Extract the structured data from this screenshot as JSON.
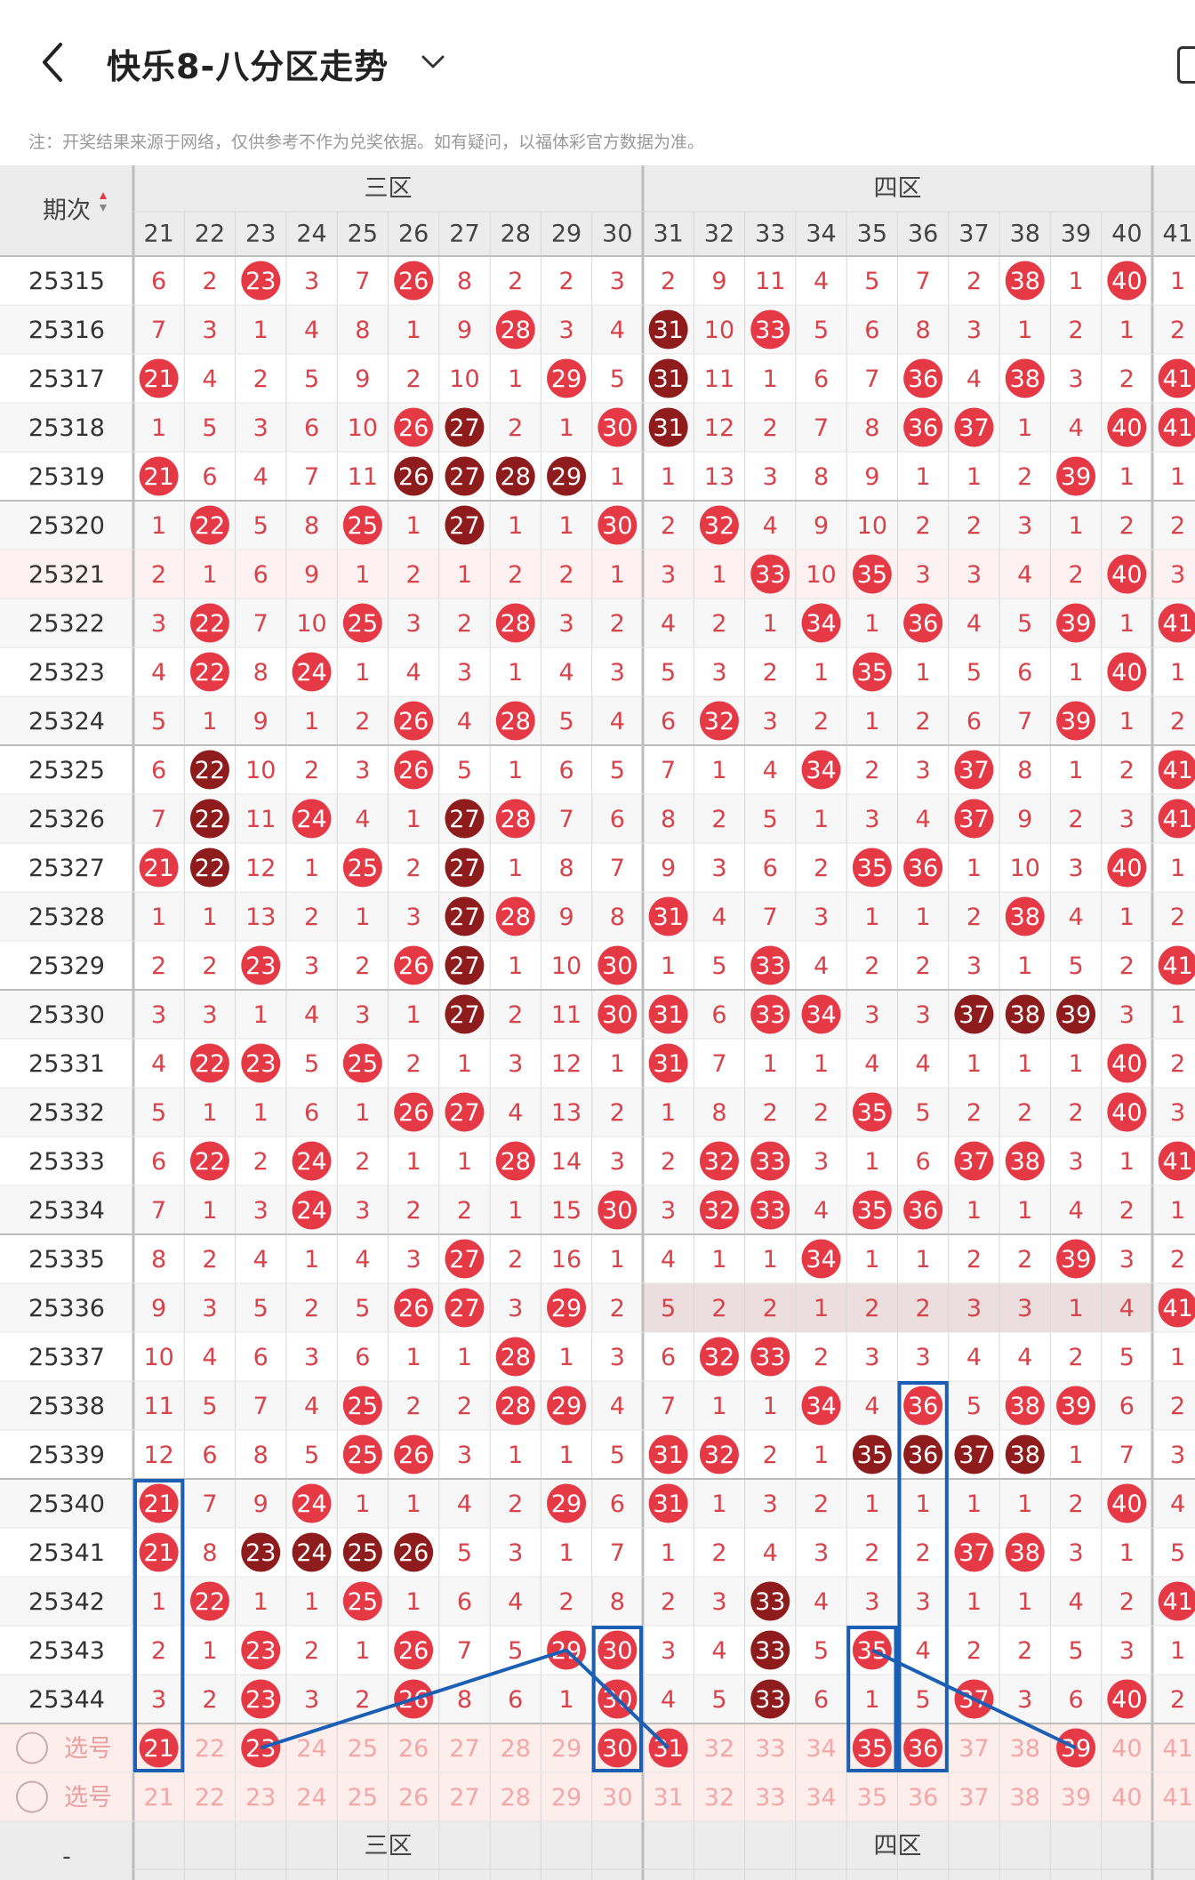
{
  "header": {
    "title": "快乐8-八分区走势",
    "notice": "注：开奖结果来源于网络，仅供参考不作为兑奖依据。如有疑问，以福体彩官方数据为准。"
  },
  "table": {
    "period_label": "期次",
    "zones": [
      "三区",
      "四区"
    ],
    "columns": [
      21,
      22,
      23,
      24,
      25,
      26,
      27,
      28,
      29,
      30,
      31,
      32,
      33,
      34,
      35,
      36,
      37,
      38,
      39,
      40,
      41
    ],
    "rows": [
      {
        "p": "25315",
        "v": [
          6,
          2,
          "23",
          3,
          7,
          "26",
          8,
          2,
          2,
          3,
          2,
          9,
          11,
          4,
          5,
          7,
          2,
          "38",
          1,
          "40",
          1
        ]
      },
      {
        "p": "25316",
        "v": [
          7,
          3,
          1,
          4,
          8,
          1,
          9,
          "28",
          3,
          4,
          "31d",
          10,
          "33",
          5,
          6,
          8,
          3,
          1,
          2,
          1,
          2
        ]
      },
      {
        "p": "25317",
        "v": [
          "21",
          4,
          2,
          5,
          9,
          2,
          10,
          1,
          "29",
          5,
          "31d",
          11,
          1,
          6,
          7,
          "36",
          4,
          "38",
          3,
          2,
          "41"
        ]
      },
      {
        "p": "25318",
        "v": [
          1,
          5,
          3,
          6,
          10,
          "26",
          "27d",
          2,
          1,
          "30",
          "31d",
          12,
          2,
          7,
          8,
          "36",
          "37",
          1,
          4,
          "40",
          "41"
        ]
      },
      {
        "p": "25319",
        "v": [
          "21",
          6,
          4,
          7,
          11,
          "26d",
          "27d",
          "28d",
          "29d",
          1,
          1,
          13,
          3,
          8,
          9,
          1,
          1,
          2,
          "39",
          1,
          1
        ]
      },
      {
        "p": "25320",
        "v": [
          1,
          "22",
          5,
          8,
          "25",
          1,
          "27d",
          1,
          1,
          "30",
          2,
          "32",
          4,
          9,
          10,
          2,
          2,
          3,
          1,
          2,
          2
        ]
      },
      {
        "p": "25321",
        "v": [
          2,
          1,
          6,
          9,
          1,
          2,
          1,
          2,
          2,
          1,
          3,
          1,
          "33",
          10,
          "35",
          3,
          3,
          4,
          2,
          "40",
          3
        ]
      },
      {
        "p": "25322",
        "v": [
          3,
          "22",
          7,
          10,
          "25",
          3,
          2,
          "28",
          3,
          2,
          4,
          2,
          1,
          "34",
          1,
          "36",
          4,
          5,
          "39",
          1,
          "41"
        ]
      },
      {
        "p": "25323",
        "v": [
          4,
          "22",
          8,
          "24",
          1,
          4,
          3,
          1,
          4,
          3,
          5,
          3,
          2,
          1,
          "35",
          1,
          5,
          6,
          1,
          "40",
          1
        ]
      },
      {
        "p": "25324",
        "v": [
          5,
          1,
          9,
          1,
          2,
          "26",
          4,
          "28",
          5,
          4,
          6,
          "32",
          3,
          2,
          1,
          2,
          6,
          7,
          "39",
          1,
          2
        ]
      },
      {
        "p": "25325",
        "v": [
          6,
          "22d",
          10,
          2,
          3,
          "26",
          5,
          1,
          6,
          5,
          7,
          1,
          4,
          "34",
          2,
          3,
          "37",
          8,
          1,
          2,
          "41"
        ]
      },
      {
        "p": "25326",
        "v": [
          7,
          "22d",
          11,
          "24",
          4,
          1,
          "27d",
          "28",
          7,
          6,
          8,
          2,
          5,
          1,
          3,
          4,
          "37",
          9,
          2,
          3,
          "41"
        ]
      },
      {
        "p": "25327",
        "v": [
          "21",
          "22d",
          12,
          1,
          "25",
          2,
          "27d",
          1,
          8,
          7,
          9,
          3,
          6,
          2,
          "35",
          "36",
          1,
          10,
          3,
          "40",
          1
        ]
      },
      {
        "p": "25328",
        "v": [
          1,
          1,
          13,
          2,
          1,
          3,
          "27d",
          "28",
          9,
          8,
          "31",
          4,
          7,
          3,
          1,
          1,
          2,
          "38",
          4,
          1,
          2
        ]
      },
      {
        "p": "25329",
        "v": [
          2,
          2,
          "23",
          3,
          2,
          "26",
          "27d",
          1,
          10,
          "30",
          1,
          5,
          "33",
          4,
          2,
          2,
          3,
          1,
          5,
          2,
          "41"
        ]
      },
      {
        "p": "25330",
        "v": [
          3,
          3,
          1,
          4,
          3,
          1,
          "27d",
          2,
          11,
          "30",
          "31",
          6,
          "33",
          "34",
          3,
          3,
          "37d",
          "38d",
          "39d",
          3,
          1
        ]
      },
      {
        "p": "25331",
        "v": [
          4,
          "22",
          "23",
          5,
          "25",
          2,
          1,
          3,
          12,
          1,
          "31",
          7,
          1,
          1,
          4,
          4,
          1,
          1,
          1,
          "40",
          2
        ]
      },
      {
        "p": "25332",
        "v": [
          5,
          1,
          1,
          6,
          1,
          "26",
          "27",
          4,
          13,
          2,
          1,
          8,
          2,
          2,
          "35",
          5,
          2,
          2,
          2,
          "40",
          3
        ]
      },
      {
        "p": "25333",
        "v": [
          6,
          "22",
          2,
          "24",
          2,
          1,
          1,
          "28",
          14,
          3,
          2,
          "32",
          "33",
          3,
          1,
          6,
          "37",
          "38",
          3,
          1,
          "41"
        ]
      },
      {
        "p": "25334",
        "v": [
          7,
          1,
          3,
          "24",
          3,
          2,
          2,
          1,
          15,
          "30",
          3,
          "32",
          "33",
          4,
          "35",
          "36",
          1,
          1,
          4,
          2,
          1
        ]
      },
      {
        "p": "25335",
        "v": [
          8,
          2,
          4,
          1,
          4,
          3,
          "27",
          2,
          16,
          1,
          4,
          1,
          1,
          "34",
          1,
          1,
          2,
          2,
          "39",
          3,
          2
        ]
      },
      {
        "p": "25336",
        "v": [
          9,
          3,
          5,
          2,
          5,
          "26",
          "27",
          3,
          "29",
          2,
          5,
          2,
          2,
          1,
          2,
          2,
          3,
          3,
          1,
          4,
          "41"
        ]
      },
      {
        "p": "25337",
        "v": [
          10,
          4,
          6,
          3,
          6,
          1,
          1,
          "28",
          1,
          3,
          6,
          "32",
          "33",
          2,
          3,
          3,
          4,
          4,
          2,
          5,
          1
        ]
      },
      {
        "p": "25338",
        "v": [
          11,
          5,
          7,
          4,
          "25",
          2,
          2,
          "28",
          "29",
          4,
          7,
          1,
          1,
          "34",
          4,
          "36",
          5,
          "38",
          "39",
          6,
          2
        ]
      },
      {
        "p": "25339",
        "v": [
          12,
          6,
          8,
          5,
          "25",
          "26",
          3,
          1,
          1,
          5,
          "31",
          "32",
          2,
          1,
          "35d",
          "36d",
          "37d",
          "38d",
          1,
          7,
          3
        ]
      },
      {
        "p": "25340",
        "v": [
          "21",
          7,
          9,
          "24",
          1,
          1,
          4,
          2,
          "29",
          6,
          "31",
          1,
          3,
          2,
          1,
          1,
          1,
          1,
          2,
          "40",
          4
        ]
      },
      {
        "p": "25341",
        "v": [
          "21",
          8,
          "23d",
          "24d",
          "25d",
          "26d",
          5,
          3,
          1,
          7,
          1,
          2,
          4,
          3,
          2,
          2,
          "37",
          "38",
          3,
          1,
          5
        ]
      },
      {
        "p": "25342",
        "v": [
          1,
          "22",
          1,
          1,
          "25",
          1,
          6,
          4,
          2,
          8,
          2,
          3,
          "33d",
          4,
          3,
          3,
          1,
          1,
          4,
          2,
          "41"
        ]
      },
      {
        "p": "25343",
        "v": [
          2,
          1,
          "23",
          2,
          1,
          "26",
          7,
          5,
          "29",
          "30",
          3,
          4,
          "33d",
          5,
          "35",
          4,
          2,
          2,
          5,
          3,
          1
        ]
      },
      {
        "p": "25344",
        "v": [
          3,
          2,
          "23",
          3,
          2,
          "26",
          8,
          6,
          1,
          "30",
          4,
          5,
          "33d",
          6,
          1,
          5,
          "37",
          3,
          6,
          "40",
          2
        ]
      }
    ],
    "select_label": "选号",
    "select_rows": [
      {
        "v": [
          "21s",
          22,
          "23s",
          24,
          25,
          26,
          27,
          28,
          29,
          "30s",
          "31s",
          32,
          33,
          34,
          "35s",
          "36s",
          37,
          38,
          "39s",
          40,
          41
        ]
      },
      {
        "v": [
          21,
          22,
          23,
          24,
          25,
          26,
          27,
          28,
          29,
          30,
          31,
          32,
          33,
          34,
          35,
          36,
          37,
          38,
          39,
          40,
          41
        ]
      }
    ],
    "footer_dash": "-",
    "colors": {
      "red": "#e63946",
      "dark": "#8e1c1c",
      "text": "#d8434a",
      "grid": "#d7d7d7",
      "header_bg": "#ececec",
      "annot": "#1a5fb4"
    }
  }
}
